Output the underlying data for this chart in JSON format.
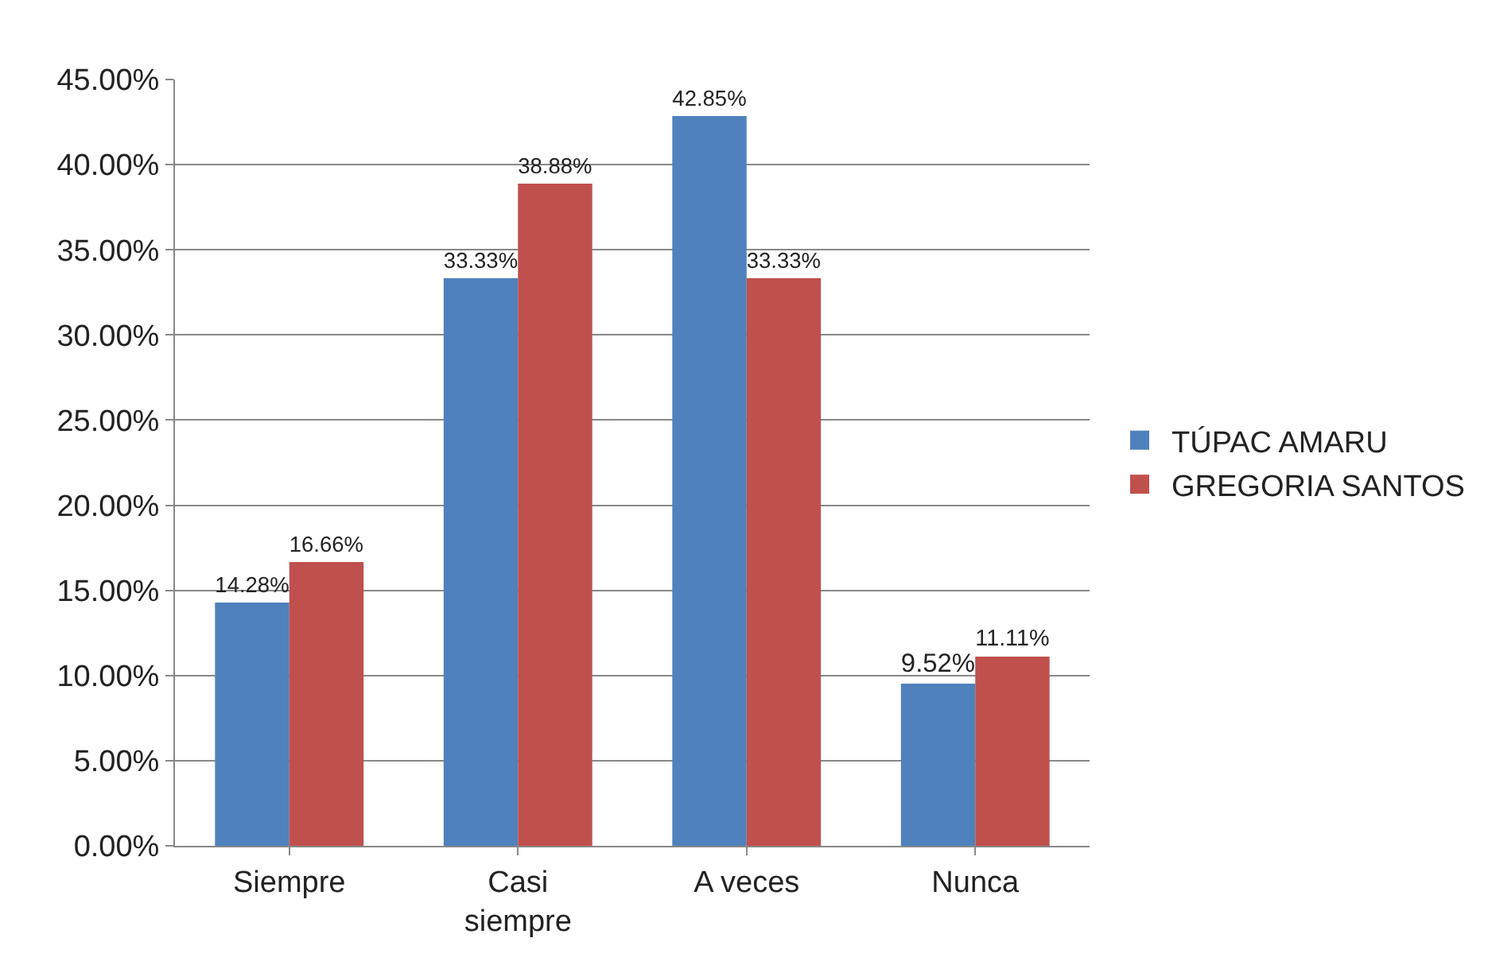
{
  "chart_data": {
    "type": "bar",
    "categories": [
      "Siempre",
      "Casi siempre",
      "A veces",
      "Nunca"
    ],
    "series": [
      {
        "name": "TÚPAC AMARU",
        "color": "#4f81bd",
        "values": [
          14.28,
          33.33,
          42.85,
          9.52
        ],
        "value_labels": [
          "14.28%",
          "33.33%",
          "42.85%",
          "9.52%"
        ]
      },
      {
        "name": "GREGORIA SANTOS",
        "color": "#c0504d",
        "values": [
          16.66,
          38.88,
          33.33,
          11.11
        ],
        "value_labels": [
          "16.66%",
          "38.88%",
          "33.33%",
          "11.11%"
        ]
      }
    ],
    "ylim": [
      0,
      45
    ],
    "yticks": [
      {
        "value": 0,
        "label": "0.00%"
      },
      {
        "value": 5,
        "label": "5.00%"
      },
      {
        "value": 10,
        "label": "10.00%"
      },
      {
        "value": 15,
        "label": "15.00%"
      },
      {
        "value": 20,
        "label": "20.00%"
      },
      {
        "value": 25,
        "label": "25.00%"
      },
      {
        "value": 30,
        "label": "30.00%"
      },
      {
        "value": 35,
        "label": "35.00%"
      },
      {
        "value": 40,
        "label": "40.00%"
      },
      {
        "value": 45,
        "label": "45.00%"
      }
    ],
    "grid": "y",
    "legend": "right"
  }
}
